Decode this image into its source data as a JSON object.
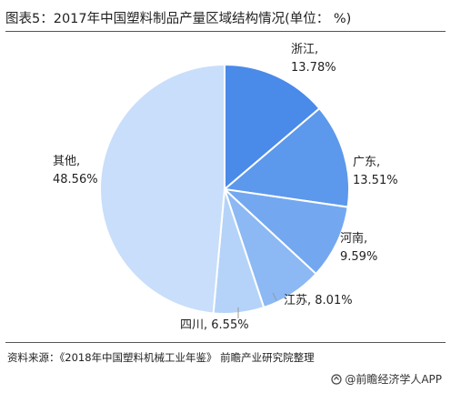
{
  "title": "图表5：2017年中国塑料制品产量区域结构情况(单位：  %)",
  "source": "资料来源：《2018年中国塑料机械工业年鉴》 前瞻产业研究院整理",
  "brand": "@前瞻经济学人APP",
  "chart_data": {
    "type": "pie",
    "start_angle_deg": 0,
    "direction": "clockwise",
    "slices": [
      {
        "label": "浙江",
        "value": 13.78,
        "display": "13.78%",
        "color": "#4a8ae8"
      },
      {
        "label": "广东",
        "value": 13.51,
        "display": "13.51%",
        "color": "#5c98ec"
      },
      {
        "label": "河南",
        "value": 9.59,
        "display": "9.59%",
        "color": "#73a8f0"
      },
      {
        "label": "江苏",
        "value": 8.01,
        "display": "8.01%",
        "color": "#8cb8f3"
      },
      {
        "label": "四川",
        "value": 6.55,
        "display": "6.55%",
        "color": "#b5d3f8"
      },
      {
        "label": "其他",
        "value": 48.56,
        "display": "48.56%",
        "color": "#c8defa"
      }
    ]
  }
}
